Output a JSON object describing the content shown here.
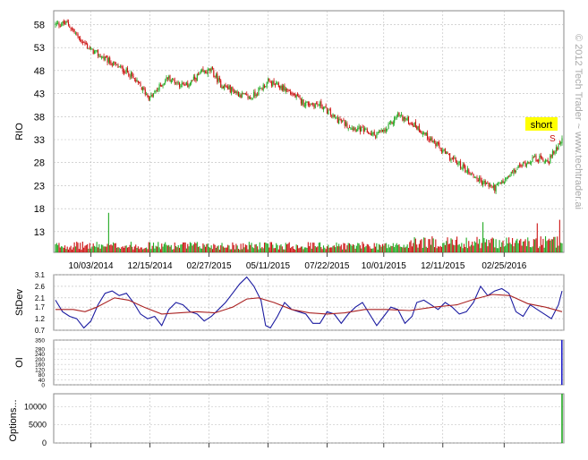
{
  "watermark": "© 2012 Tech Trader ~ www.techtrader.ai",
  "colors": {
    "up": "#22aa22",
    "down": "#cc1111",
    "stdev_line": "#1a1aa0",
    "stdev_avg": "#aa2222",
    "grid": "#bbbbbb",
    "signal_box": "#ffff00",
    "oi_bar": "#2222cc",
    "options_bar": "#22aa22"
  },
  "chart_data": [
    {
      "type": "candlestick",
      "panel": "price",
      "ylabel": "RIO",
      "ylim": [
        8.5,
        61
      ],
      "y_ticks": [
        "58",
        "53",
        "48",
        "43",
        "38",
        "33",
        "28",
        "23",
        "18",
        "13"
      ],
      "y_tick_values": [
        58,
        53,
        48,
        43,
        38,
        33,
        28,
        23,
        18,
        13
      ],
      "x_ticks": [
        "10/03/2014",
        "12/15/2014",
        "02/27/2015",
        "05/11/2015",
        "07/22/2015",
        "10/01/2015",
        "12/11/2015",
        "02/25/2016"
      ],
      "x_tick_index": [
        30,
        80,
        130,
        180,
        230,
        278,
        328,
        380
      ],
      "n_bars": 430,
      "close_path": [
        [
          0,
          58
        ],
        [
          10,
          58.3
        ],
        [
          20,
          55
        ],
        [
          30,
          52.5
        ],
        [
          45,
          50
        ],
        [
          62,
          47.5
        ],
        [
          80,
          42
        ],
        [
          95,
          46.5
        ],
        [
          110,
          44.5
        ],
        [
          124,
          47.5
        ],
        [
          132,
          48
        ],
        [
          140,
          45
        ],
        [
          155,
          43
        ],
        [
          165,
          42
        ],
        [
          180,
          45.5
        ],
        [
          195,
          44
        ],
        [
          210,
          41
        ],
        [
          225,
          40.5
        ],
        [
          235,
          38
        ],
        [
          248,
          36
        ],
        [
          260,
          35
        ],
        [
          270,
          34
        ],
        [
          280,
          35
        ],
        [
          290,
          38.5
        ],
        [
          305,
          36
        ],
        [
          318,
          33
        ],
        [
          330,
          30
        ],
        [
          345,
          27
        ],
        [
          360,
          24
        ],
        [
          372,
          22.5
        ],
        [
          380,
          24
        ],
        [
          392,
          27
        ],
        [
          405,
          29
        ],
        [
          418,
          28.5
        ],
        [
          425,
          31.5
        ],
        [
          429,
          33.5
        ]
      ],
      "annotation": {
        "text": "short",
        "marker": "S",
        "bar_index": 429
      }
    },
    {
      "type": "bar",
      "panel": "volume",
      "note": "daily volume bars colored by candle direction, with spikes",
      "spikes": [
        {
          "bar_index": 45,
          "relative_height": 3.4
        },
        {
          "bar_index": 362,
          "relative_height": 2.6
        },
        {
          "bar_index": 408,
          "relative_height": 2.5
        },
        {
          "bar_index": 427,
          "relative_height": 2.8
        }
      ]
    },
    {
      "type": "line",
      "panel": "stdev",
      "ylabel": "StDev",
      "ylim": [
        0.7,
        3.1
      ],
      "y_ticks": [
        "3.1",
        "2.6",
        "2.1",
        "1.7",
        "1.2",
        "0.7"
      ],
      "y_tick_values": [
        3.1,
        2.6,
        2.1,
        1.7,
        1.2,
        0.7
      ],
      "series": [
        {
          "role": "stdev",
          "points": [
            [
              0,
              2.0
            ],
            [
              6,
              1.5
            ],
            [
              12,
              1.3
            ],
            [
              18,
              1.2
            ],
            [
              24,
              0.8
            ],
            [
              30,
              1.1
            ],
            [
              36,
              1.8
            ],
            [
              42,
              2.3
            ],
            [
              48,
              2.4
            ],
            [
              54,
              2.2
            ],
            [
              60,
              2.3
            ],
            [
              66,
              1.9
            ],
            [
              72,
              1.4
            ],
            [
              78,
              1.2
            ],
            [
              84,
              1.3
            ],
            [
              90,
              0.9
            ],
            [
              96,
              1.6
            ],
            [
              102,
              1.9
            ],
            [
              108,
              1.8
            ],
            [
              114,
              1.5
            ],
            [
              120,
              1.4
            ],
            [
              126,
              1.1
            ],
            [
              132,
              1.3
            ],
            [
              138,
              1.6
            ],
            [
              144,
              1.9
            ],
            [
              150,
              2.3
            ],
            [
              156,
              2.7
            ],
            [
              162,
              3.0
            ],
            [
              168,
              2.6
            ],
            [
              174,
              2.0
            ],
            [
              178,
              0.9
            ],
            [
              182,
              0.8
            ],
            [
              188,
              1.3
            ],
            [
              194,
              1.9
            ],
            [
              200,
              1.6
            ],
            [
              206,
              1.5
            ],
            [
              212,
              1.4
            ],
            [
              218,
              1.0
            ],
            [
              224,
              1.0
            ],
            [
              230,
              1.5
            ],
            [
              236,
              1.4
            ],
            [
              242,
              1.0
            ],
            [
              248,
              1.4
            ],
            [
              254,
              1.7
            ],
            [
              260,
              1.9
            ],
            [
              266,
              1.4
            ],
            [
              272,
              0.9
            ],
            [
              278,
              1.3
            ],
            [
              284,
              1.7
            ],
            [
              290,
              1.6
            ],
            [
              296,
              1.0
            ],
            [
              302,
              1.3
            ],
            [
              306,
              1.9
            ],
            [
              312,
              2.0
            ],
            [
              318,
              1.8
            ],
            [
              324,
              1.6
            ],
            [
              330,
              1.9
            ],
            [
              336,
              1.7
            ],
            [
              342,
              1.4
            ],
            [
              348,
              1.5
            ],
            [
              354,
              1.9
            ],
            [
              360,
              2.6
            ],
            [
              366,
              2.2
            ],
            [
              372,
              2.4
            ],
            [
              378,
              2.5
            ],
            [
              384,
              2.3
            ],
            [
              390,
              1.5
            ],
            [
              396,
              1.3
            ],
            [
              402,
              1.8
            ],
            [
              408,
              1.6
            ],
            [
              414,
              1.4
            ],
            [
              420,
              1.2
            ],
            [
              426,
              1.8
            ],
            [
              429,
              2.4
            ]
          ]
        },
        {
          "role": "average",
          "points": [
            [
              0,
              1.6
            ],
            [
              15,
              1.6
            ],
            [
              25,
              1.5
            ],
            [
              35,
              1.7
            ],
            [
              50,
              2.1
            ],
            [
              62,
              2.0
            ],
            [
              75,
              1.7
            ],
            [
              90,
              1.4
            ],
            [
              105,
              1.45
            ],
            [
              120,
              1.5
            ],
            [
              135,
              1.45
            ],
            [
              150,
              1.7
            ],
            [
              162,
              2.05
            ],
            [
              172,
              2.1
            ],
            [
              185,
              1.9
            ],
            [
              200,
              1.6
            ],
            [
              215,
              1.45
            ],
            [
              230,
              1.4
            ],
            [
              245,
              1.45
            ],
            [
              262,
              1.6
            ],
            [
              280,
              1.6
            ],
            [
              300,
              1.55
            ],
            [
              320,
              1.7
            ],
            [
              340,
              1.8
            ],
            [
              355,
              2.05
            ],
            [
              370,
              2.25
            ],
            [
              385,
              2.2
            ],
            [
              400,
              1.85
            ],
            [
              415,
              1.7
            ],
            [
              429,
              1.5
            ]
          ]
        }
      ]
    },
    {
      "type": "bar",
      "panel": "oi",
      "ylabel": "OI",
      "ylim": [
        0,
        350
      ],
      "y_ticks": [
        "350",
        "280",
        "240",
        "200",
        "160",
        "120",
        "80",
        "40",
        "0"
      ],
      "y_tick_values": [
        350,
        280,
        240,
        200,
        160,
        120,
        80,
        40,
        0
      ],
      "bars": [
        {
          "bar_index": 429,
          "value": 350
        }
      ]
    },
    {
      "type": "bar",
      "panel": "options",
      "ylabel": "Options...",
      "ylim": [
        0,
        13500
      ],
      "y_ticks": [
        "10000",
        "5000",
        "0"
      ],
      "y_tick_values": [
        10000,
        5000,
        0
      ],
      "bars": [
        {
          "bar_index": 429,
          "value": 13500
        }
      ]
    }
  ]
}
